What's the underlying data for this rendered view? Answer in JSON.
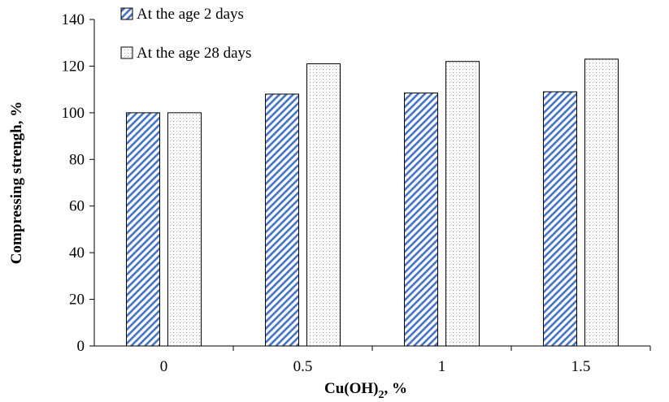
{
  "chart_data": {
    "type": "bar",
    "title": "",
    "xlabel": "Cu(OH)",
    "xlabel_subscript": "2",
    "xlabel_suffix": ", %",
    "ylabel": "Compressing strengh, %",
    "categories": [
      "0",
      "0.5",
      "1",
      "1.5"
    ],
    "ylim": [
      0,
      140
    ],
    "yticks": [
      0,
      20,
      40,
      60,
      80,
      100,
      120,
      140
    ],
    "grid": false,
    "legend_position": "top-left",
    "series": [
      {
        "name": "At the age 2 days",
        "values": [
          100,
          108,
          108.5,
          109
        ],
        "pattern": "diagonal-hatch",
        "color": "#4472c4"
      },
      {
        "name": "At the age 28 days",
        "values": [
          100,
          121,
          122,
          123
        ],
        "pattern": "dots",
        "color": "#7a9cc9"
      }
    ]
  }
}
